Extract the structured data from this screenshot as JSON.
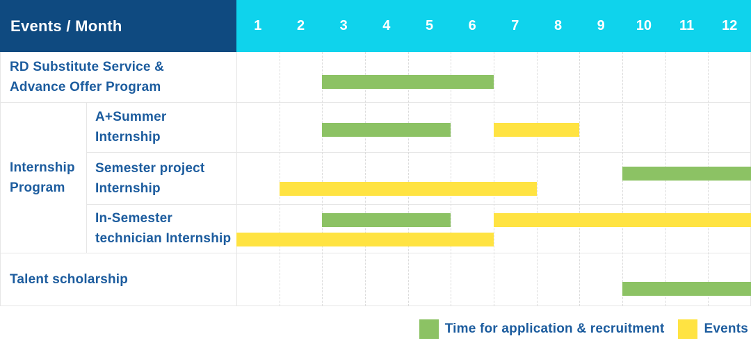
{
  "header": {
    "title": "Events / Month",
    "months": [
      "1",
      "2",
      "3",
      "4",
      "5",
      "6",
      "7",
      "8",
      "9",
      "10",
      "11",
      "12"
    ]
  },
  "chart_data": {
    "type": "gantt",
    "title": "Events / Month",
    "x_axis_label": "Month",
    "months": [
      "1",
      "2",
      "3",
      "4",
      "5",
      "6",
      "7",
      "8",
      "9",
      "10",
      "11",
      "12"
    ],
    "series": [
      "Time for application & recruitment",
      "Events"
    ],
    "rows": [
      {
        "label": "RD Substitute Service & Advance Offer Program",
        "label_lines": [
          "RD Substitute Service &",
          "Advance Offer Program"
        ],
        "group": null,
        "bars": [
          {
            "series": "Time for application & recruitment",
            "color_key": "green",
            "start_month": 3,
            "end_month": 6,
            "lane": 0
          }
        ]
      },
      {
        "label": "A+Summer Internship",
        "label_lines": [
          "A+Summer",
          "Internship"
        ],
        "group": "Internship Program",
        "bars": [
          {
            "series": "Time for application & recruitment",
            "color_key": "green",
            "start_month": 3,
            "end_month": 5,
            "lane": 0
          },
          {
            "series": "Events",
            "color_key": "yellow",
            "start_month": 7,
            "end_month": 8,
            "lane": 0
          }
        ]
      },
      {
        "label": "Semester project Internship",
        "label_lines": [
          "Semester project",
          "Internship"
        ],
        "group": "Internship Program",
        "bars": [
          {
            "series": "Time for application & recruitment",
            "color_key": "green",
            "start_month": 10,
            "end_month": 12,
            "lane": 0
          },
          {
            "series": "Events",
            "color_key": "yellow",
            "start_month": 2,
            "end_month": 7,
            "lane": 1
          }
        ]
      },
      {
        "label": "In-Semester technician Internship",
        "label_lines": [
          "In-Semester",
          "technician Internship"
        ],
        "group": "Internship Program",
        "bars": [
          {
            "series": "Time for application & recruitment",
            "color_key": "green",
            "start_month": 3,
            "end_month": 5,
            "lane": 0
          },
          {
            "series": "Events",
            "color_key": "yellow",
            "start_month": 7,
            "end_month": 12,
            "lane": 0
          },
          {
            "series": "Events",
            "color_key": "yellow",
            "start_month": 1,
            "end_month": 6,
            "lane": 1
          }
        ]
      },
      {
        "label": "Talent scholarship",
        "label_lines": [
          "Talent scholarship"
        ],
        "group": null,
        "bars": [
          {
            "series": "Time for application & recruitment",
            "color_key": "green",
            "start_month": 10,
            "end_month": 12,
            "lane": 0
          }
        ]
      }
    ],
    "group_cells": [
      {
        "label": "Internship Program",
        "label_lines": [
          "Internship",
          "Program"
        ],
        "first_row": 1,
        "last_row": 3
      }
    ],
    "legend": [
      {
        "color_key": "green",
        "label": "Time for application & recruitment"
      },
      {
        "color_key": "yellow",
        "label": "Events"
      }
    ],
    "layout_hints": {
      "months_axis": "top",
      "legend_position": "bottom-right",
      "grid": "dashed-vertical-month-lines",
      "month_range": [
        1,
        12
      ]
    }
  },
  "colors": {
    "header_left_bg": "#0f4a80",
    "header_months_bg": "#0fd3ec",
    "green": "#8cc264",
    "yellow": "#ffe342",
    "label_text": "#1c5c9e",
    "grid_line": "#e6e6e6"
  }
}
